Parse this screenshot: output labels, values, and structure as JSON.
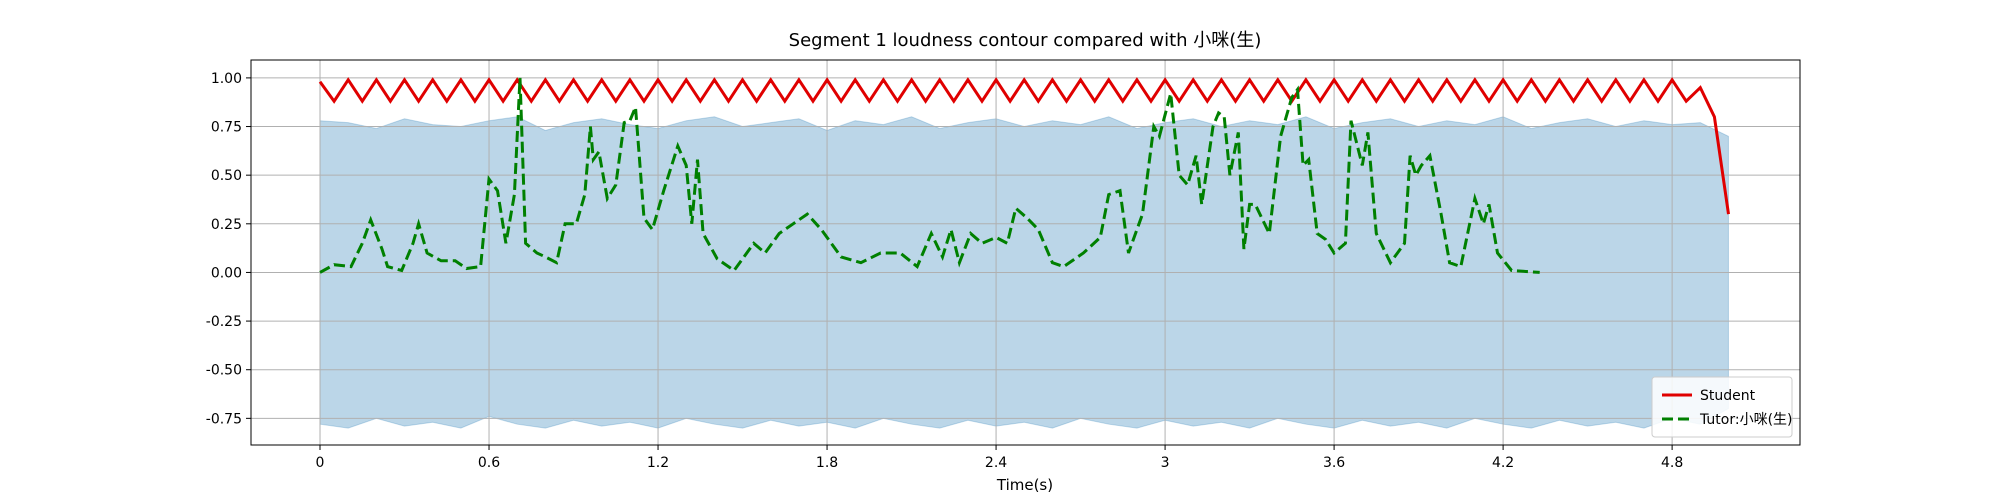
{
  "chart_data": {
    "type": "line",
    "title": "Segment 1 loudness contour compared with 小咪(生)",
    "x_label": "Time(s)",
    "xlim": [
      -0.245,
      5.254
    ],
    "ylim": [
      -0.887,
      1.092
    ],
    "xticks": [
      0,
      0.6,
      1.2,
      1.8,
      2.4,
      3,
      3.6,
      4.2,
      4.8
    ],
    "yticks": [
      {
        "value": -0.75,
        "label": "-0.75"
      },
      {
        "value": -0.5,
        "label": "-0.50"
      },
      {
        "value": -0.25,
        "label": "-0.25"
      },
      {
        "value": 0,
        "label": "0.00"
      },
      {
        "value": 0.25,
        "label": "0.25"
      },
      {
        "value": 0.5,
        "label": "0.50"
      },
      {
        "value": 0.75,
        "label": "0.75"
      },
      {
        "value": 1,
        "label": "1.00"
      }
    ],
    "grid": true,
    "legend": "lower right",
    "fill_between": {
      "color": "#1f77b4",
      "x": [
        0,
        0.1,
        0.2,
        0.3,
        0.4,
        0.5,
        0.6,
        0.7,
        0.8,
        0.9,
        1.0,
        1.1,
        1.2,
        1.3,
        1.4,
        1.5,
        1.6,
        1.7,
        1.8,
        1.9,
        2.0,
        2.1,
        2.2,
        2.3,
        2.4,
        2.5,
        2.6,
        2.7,
        2.8,
        2.9,
        3.0,
        3.1,
        3.2,
        3.3,
        3.4,
        3.5,
        3.6,
        3.7,
        3.8,
        3.9,
        4.0,
        4.1,
        4.2,
        4.3,
        4.4,
        4.5,
        4.6,
        4.7,
        4.8,
        4.9,
        5.0
      ],
      "upper": [
        0.78,
        0.77,
        0.74,
        0.79,
        0.76,
        0.75,
        0.78,
        0.8,
        0.73,
        0.77,
        0.79,
        0.76,
        0.74,
        0.78,
        0.8,
        0.75,
        0.77,
        0.79,
        0.73,
        0.78,
        0.76,
        0.8,
        0.74,
        0.77,
        0.79,
        0.75,
        0.78,
        0.76,
        0.8,
        0.74,
        0.77,
        0.79,
        0.75,
        0.78,
        0.76,
        0.8,
        0.74,
        0.77,
        0.79,
        0.75,
        0.78,
        0.76,
        0.8,
        0.74,
        0.77,
        0.79,
        0.75,
        0.78,
        0.76,
        0.77,
        0.7
      ],
      "lower": [
        -0.78,
        -0.8,
        -0.75,
        -0.79,
        -0.77,
        -0.8,
        -0.74,
        -0.78,
        -0.8,
        -0.76,
        -0.79,
        -0.77,
        -0.8,
        -0.75,
        -0.78,
        -0.8,
        -0.76,
        -0.79,
        -0.77,
        -0.8,
        -0.75,
        -0.78,
        -0.8,
        -0.76,
        -0.79,
        -0.77,
        -0.8,
        -0.75,
        -0.78,
        -0.8,
        -0.76,
        -0.79,
        -0.77,
        -0.8,
        -0.75,
        -0.78,
        -0.8,
        -0.76,
        -0.79,
        -0.77,
        -0.8,
        -0.75,
        -0.78,
        -0.8,
        -0.76,
        -0.79,
        -0.77,
        -0.8,
        -0.75,
        -0.78,
        -0.7
      ]
    },
    "series": [
      {
        "name": "Student",
        "color": "#e00000",
        "dash": "solid",
        "x": [
          0,
          0.05,
          0.1,
          0.15,
          0.2,
          0.25,
          0.3,
          0.35,
          0.4,
          0.45,
          0.5,
          0.55,
          0.6,
          0.65,
          0.7,
          0.75,
          0.8,
          0.85,
          0.9,
          0.95,
          1.0,
          1.05,
          1.1,
          1.15,
          1.2,
          1.25,
          1.3,
          1.35,
          1.4,
          1.45,
          1.5,
          1.55,
          1.6,
          1.65,
          1.7,
          1.75,
          1.8,
          1.85,
          1.9,
          1.95,
          2.0,
          2.05,
          2.1,
          2.15,
          2.2,
          2.25,
          2.3,
          2.35,
          2.4,
          2.45,
          2.5,
          2.55,
          2.6,
          2.65,
          2.7,
          2.75,
          2.8,
          2.85,
          2.9,
          2.95,
          3.0,
          3.05,
          3.1,
          3.15,
          3.2,
          3.25,
          3.3,
          3.35,
          3.4,
          3.45,
          3.5,
          3.55,
          3.6,
          3.65,
          3.7,
          3.75,
          3.8,
          3.85,
          3.9,
          3.95,
          4.0,
          4.05,
          4.1,
          4.15,
          4.2,
          4.25,
          4.3,
          4.35,
          4.4,
          4.45,
          4.5,
          4.55,
          4.6,
          4.65,
          4.7,
          4.75,
          4.8,
          4.85,
          4.9,
          4.95,
          5.0
        ],
        "values": [
          0.98,
          0.88,
          0.99,
          0.88,
          0.99,
          0.88,
          0.99,
          0.88,
          0.99,
          0.88,
          0.99,
          0.88,
          0.99,
          0.88,
          0.99,
          0.88,
          0.99,
          0.88,
          0.99,
          0.88,
          0.99,
          0.88,
          0.99,
          0.88,
          0.99,
          0.88,
          0.99,
          0.88,
          0.99,
          0.88,
          0.99,
          0.88,
          0.99,
          0.88,
          0.99,
          0.88,
          0.99,
          0.88,
          0.99,
          0.88,
          0.99,
          0.88,
          0.99,
          0.88,
          0.99,
          0.88,
          0.99,
          0.88,
          0.99,
          0.88,
          0.99,
          0.88,
          0.99,
          0.88,
          0.99,
          0.88,
          0.99,
          0.88,
          0.99,
          0.88,
          0.99,
          0.88,
          0.99,
          0.88,
          0.99,
          0.88,
          0.99,
          0.88,
          0.99,
          0.88,
          0.99,
          0.88,
          0.99,
          0.88,
          0.99,
          0.88,
          0.99,
          0.88,
          0.99,
          0.88,
          0.99,
          0.88,
          0.99,
          0.88,
          0.99,
          0.88,
          0.99,
          0.88,
          0.99,
          0.88,
          0.99,
          0.88,
          0.99,
          0.88,
          0.99,
          0.88,
          0.99,
          0.88,
          0.95,
          0.8,
          0.3
        ]
      },
      {
        "name": "Tutor:小咪(生)",
        "color": "#008000",
        "dash": "dashed",
        "x": [
          0,
          0.05,
          0.11,
          0.15,
          0.18,
          0.22,
          0.24,
          0.29,
          0.33,
          0.35,
          0.38,
          0.43,
          0.48,
          0.52,
          0.57,
          0.6,
          0.63,
          0.66,
          0.69,
          0.71,
          0.73,
          0.77,
          0.8,
          0.84,
          0.87,
          0.91,
          0.94,
          0.96,
          0.97,
          0.99,
          1.02,
          1.05,
          1.08,
          1.1,
          1.12,
          1.15,
          1.18,
          1.22,
          1.27,
          1.3,
          1.32,
          1.34,
          1.36,
          1.41,
          1.47,
          1.54,
          1.58,
          1.63,
          1.68,
          1.73,
          1.78,
          1.85,
          1.92,
          1.99,
          2.06,
          2.12,
          2.17,
          2.21,
          2.24,
          2.27,
          2.31,
          2.35,
          2.4,
          2.44,
          2.47,
          2.51,
          2.55,
          2.6,
          2.64,
          2.71,
          2.77,
          2.8,
          2.84,
          2.87,
          2.92,
          2.96,
          2.98,
          3.02,
          3.05,
          3.08,
          3.11,
          3.13,
          3.17,
          3.19,
          3.21,
          3.23,
          3.26,
          3.28,
          3.3,
          3.32,
          3.37,
          3.41,
          3.45,
          3.47,
          3.49,
          3.51,
          3.54,
          3.57,
          3.6,
          3.64,
          3.66,
          3.7,
          3.72,
          3.75,
          3.8,
          3.85,
          3.87,
          3.89,
          3.91,
          3.94,
          3.98,
          4.01,
          4.05,
          4.1,
          4.13,
          4.15,
          4.18,
          4.23,
          4.33
        ],
        "values": [
          0.0,
          0.04,
          0.03,
          0.15,
          0.27,
          0.12,
          0.03,
          0.01,
          0.15,
          0.25,
          0.1,
          0.06,
          0.06,
          0.02,
          0.03,
          0.48,
          0.42,
          0.15,
          0.4,
          1.0,
          0.15,
          0.1,
          0.08,
          0.05,
          0.25,
          0.25,
          0.4,
          0.75,
          0.58,
          0.62,
          0.38,
          0.45,
          0.77,
          0.78,
          0.85,
          0.28,
          0.22,
          0.42,
          0.65,
          0.55,
          0.25,
          0.58,
          0.2,
          0.07,
          0.01,
          0.15,
          0.1,
          0.2,
          0.25,
          0.3,
          0.22,
          0.08,
          0.05,
          0.1,
          0.1,
          0.03,
          0.2,
          0.08,
          0.22,
          0.05,
          0.2,
          0.15,
          0.18,
          0.15,
          0.33,
          0.28,
          0.22,
          0.05,
          0.03,
          0.1,
          0.18,
          0.4,
          0.42,
          0.1,
          0.3,
          0.75,
          0.7,
          0.92,
          0.5,
          0.45,
          0.6,
          0.35,
          0.75,
          0.82,
          0.8,
          0.5,
          0.72,
          0.12,
          0.35,
          0.35,
          0.2,
          0.7,
          0.9,
          0.94,
          0.55,
          0.58,
          0.2,
          0.17,
          0.1,
          0.15,
          0.78,
          0.55,
          0.72,
          0.2,
          0.05,
          0.15,
          0.6,
          0.5,
          0.55,
          0.6,
          0.3,
          0.05,
          0.03,
          0.38,
          0.25,
          0.35,
          0.1,
          0.01,
          0.0
        ]
      }
    ]
  }
}
